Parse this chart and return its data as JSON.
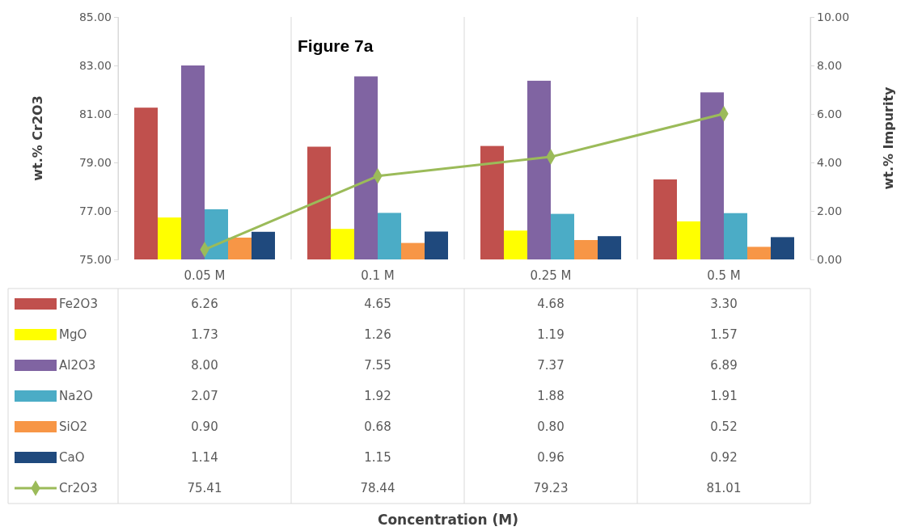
{
  "chart_data": {
    "type": "bar",
    "title": "Figure 7a",
    "annotations": [
      "Concentration (M)"
    ],
    "ylabel": "wt.% Cr2O3",
    "y2label": "wt.% Impurity",
    "categories": [
      "0.05 M",
      "0.1 M",
      "0.25 M",
      "0.5 M"
    ],
    "series": [
      {
        "name": "Fe2O3",
        "color": "#c0504d",
        "axis": "y2",
        "values": [
          6.26,
          4.65,
          4.68,
          3.3
        ],
        "value_labels": [
          "6.26",
          "4.65",
          "4.68",
          "3.30"
        ]
      },
      {
        "name": "MgO",
        "color": "#ffff00",
        "axis": "y2",
        "values": [
          1.73,
          1.26,
          1.19,
          1.57
        ],
        "value_labels": [
          "1.73",
          "1.26",
          "1.19",
          "1.57"
        ]
      },
      {
        "name": "Al2O3",
        "color": "#8064a2",
        "axis": "y2",
        "values": [
          8.0,
          7.55,
          7.37,
          6.89
        ],
        "value_labels": [
          "8.00",
          "7.55",
          "7.37",
          "6.89"
        ]
      },
      {
        "name": "Na2O",
        "color": "#4bacc6",
        "axis": "y2",
        "values": [
          2.07,
          1.92,
          1.88,
          1.91
        ],
        "value_labels": [
          "2.07",
          "1.92",
          "1.88",
          "1.91"
        ]
      },
      {
        "name": "SiO2",
        "color": "#f79646",
        "axis": "y2",
        "values": [
          0.9,
          0.68,
          0.8,
          0.52
        ],
        "value_labels": [
          "0.90",
          "0.68",
          "0.80",
          "0.52"
        ]
      },
      {
        "name": "CaO",
        "color": "#1f497d",
        "axis": "y2",
        "values": [
          1.14,
          1.15,
          0.96,
          0.92
        ],
        "value_labels": [
          "1.14",
          "1.15",
          "0.96",
          "0.92"
        ]
      },
      {
        "name": "Cr2O3",
        "type": "line",
        "color": "#9bbb59",
        "marker": "diamond",
        "values": [
          75.41,
          78.44,
          79.23,
          81.01
        ],
        "value_labels": [
          "75.41",
          "78.44",
          "79.23",
          "81.01"
        ]
      }
    ],
    "ylim": [
      75,
      85
    ],
    "yticks": [
      {
        "value": 75,
        "label": "75.00"
      },
      {
        "value": 77,
        "label": "77.00"
      },
      {
        "value": 79,
        "label": "79.00"
      },
      {
        "value": 81,
        "label": "81.00"
      },
      {
        "value": 83,
        "label": "83.00"
      },
      {
        "value": 85,
        "label": "85.00"
      }
    ],
    "y2lim": [
      0,
      10
    ],
    "y2ticks": [
      {
        "value": 0,
        "label": "0.00"
      },
      {
        "value": 2,
        "label": "2.00"
      },
      {
        "value": 4,
        "label": "4.00"
      },
      {
        "value": 6,
        "label": "6.00"
      },
      {
        "value": 8,
        "label": "8.00"
      },
      {
        "value": 10,
        "label": "10.00"
      }
    ],
    "grid": "x",
    "legend": "bottom"
  }
}
